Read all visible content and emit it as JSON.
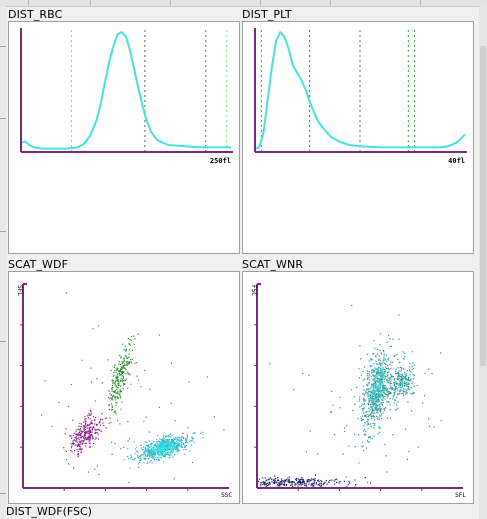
{
  "panels": [
    {
      "id": "dist-rbc",
      "title": "DIST_RBC",
      "type": "histogram",
      "x_end_label": "250fl",
      "curve_color": "#48e0e0",
      "axis_color": "#7a2a7a",
      "curve": [
        [
          0,
          7
        ],
        [
          2,
          8
        ],
        [
          4,
          5
        ],
        [
          6,
          3
        ],
        [
          10,
          2
        ],
        [
          16,
          2
        ],
        [
          22,
          2
        ],
        [
          27,
          3
        ],
        [
          30,
          6
        ],
        [
          33,
          13
        ],
        [
          36,
          26
        ],
        [
          38,
          40
        ],
        [
          40,
          58
        ],
        [
          42,
          75
        ],
        [
          44,
          88
        ],
        [
          46,
          98
        ],
        [
          48,
          100
        ],
        [
          50,
          96
        ],
        [
          52,
          84
        ],
        [
          54,
          68
        ],
        [
          56,
          52
        ],
        [
          58,
          37
        ],
        [
          60,
          25
        ],
        [
          62,
          16
        ],
        [
          65,
          9
        ],
        [
          70,
          5
        ],
        [
          78,
          4
        ],
        [
          86,
          3
        ],
        [
          94,
          3
        ],
        [
          98,
          3
        ],
        [
          100,
          3
        ]
      ],
      "markers": [
        {
          "pos": 24,
          "color": "#7ad97a"
        },
        {
          "pos": 59,
          "color": "#606060"
        },
        {
          "pos": 88,
          "color": "#606060"
        },
        {
          "pos": 98,
          "color": "#7ad97a"
        }
      ]
    },
    {
      "id": "dist-plt",
      "title": "DIST_PLT",
      "type": "histogram",
      "x_end_label": "40fl",
      "curve_color": "#48e0e0",
      "axis_color": "#7a2a7a",
      "curve": [
        [
          0,
          2
        ],
        [
          2,
          3
        ],
        [
          4,
          15
        ],
        [
          6,
          42
        ],
        [
          8,
          70
        ],
        [
          10,
          92
        ],
        [
          12,
          100
        ],
        [
          14,
          96
        ],
        [
          16,
          86
        ],
        [
          18,
          72
        ],
        [
          20,
          66
        ],
        [
          22,
          60
        ],
        [
          24,
          52
        ],
        [
          26,
          42
        ],
        [
          28,
          33
        ],
        [
          30,
          25
        ],
        [
          33,
          18
        ],
        [
          36,
          12
        ],
        [
          40,
          8
        ],
        [
          45,
          5
        ],
        [
          50,
          4
        ],
        [
          60,
          3
        ],
        [
          70,
          3
        ],
        [
          80,
          3
        ],
        [
          88,
          3
        ],
        [
          92,
          4
        ],
        [
          96,
          7
        ],
        [
          99,
          12
        ],
        [
          100,
          14
        ]
      ],
      "markers": [
        {
          "pos": 3,
          "color": "#2aa02a"
        },
        {
          "pos": 26,
          "color": "#606060"
        },
        {
          "pos": 50,
          "color": "#606060"
        },
        {
          "pos": 73,
          "color": "#2aa02a"
        },
        {
          "pos": 76,
          "color": "#2aa02a"
        }
      ]
    },
    {
      "id": "scat-wdf",
      "title": "SCAT_WDF",
      "type": "scatter",
      "y_axis_label": "SFL",
      "x_axis_label": "SSC",
      "axis_color": "#7a2a7a",
      "clusters": [
        {
          "name": "purple",
          "color": "#8a188a",
          "n": 260,
          "cx": 0.3,
          "cy": 0.27,
          "sx": 0.038,
          "sy": 0.045,
          "rho": 0.55
        },
        {
          "name": "green",
          "color": "#2a8a2a",
          "n": 230,
          "cx": 0.47,
          "cy": 0.55,
          "sx": 0.028,
          "sy": 0.085,
          "rho": 0.75
        },
        {
          "name": "cyan",
          "color": "#22b8c8",
          "n": 560,
          "cx": 0.68,
          "cy": 0.2,
          "sx": 0.065,
          "sy": 0.03,
          "rho": 0.55
        },
        {
          "name": "cyan-core",
          "color": "#33e6e6",
          "n": 150,
          "cx": 0.68,
          "cy": 0.2,
          "sx": 0.035,
          "sy": 0.016,
          "rho": 0.5
        },
        {
          "name": "scatter",
          "color": "#6a6a6a",
          "n": 70,
          "cx": 0.5,
          "cy": 0.35,
          "sx": 0.2,
          "sy": 0.22,
          "rho": 0
        }
      ]
    },
    {
      "id": "scat-wnr",
      "title": "SCAT_WNR",
      "type": "scatter",
      "y_axis_label": "FSC",
      "x_axis_label": "SFL",
      "axis_color": "#7a2a7a",
      "clusters": [
        {
          "name": "teal-main",
          "color": "#2a9a9a",
          "n": 600,
          "cx": 0.58,
          "cy": 0.48,
          "sx": 0.04,
          "sy": 0.1,
          "rho": 0.45
        },
        {
          "name": "teal-core",
          "color": "#4ad0d0",
          "n": 160,
          "cx": 0.58,
          "cy": 0.5,
          "sx": 0.022,
          "sy": 0.05,
          "rho": 0.4
        },
        {
          "name": "teal-right",
          "color": "#2a9a9a",
          "n": 220,
          "cx": 0.7,
          "cy": 0.52,
          "sx": 0.035,
          "sy": 0.05,
          "rho": 0.3
        },
        {
          "name": "navy-base",
          "color": "#1a1a6a",
          "n": 260,
          "cx": 0.18,
          "cy": 0.03,
          "sx": 0.12,
          "sy": 0.012,
          "rho": 0
        },
        {
          "name": "scatter",
          "color": "#3a7a9a",
          "n": 90,
          "cx": 0.55,
          "cy": 0.4,
          "sx": 0.18,
          "sy": 0.18,
          "rho": 0
        }
      ]
    }
  ],
  "bottom_label": "DIST_WDF(FSC)"
}
